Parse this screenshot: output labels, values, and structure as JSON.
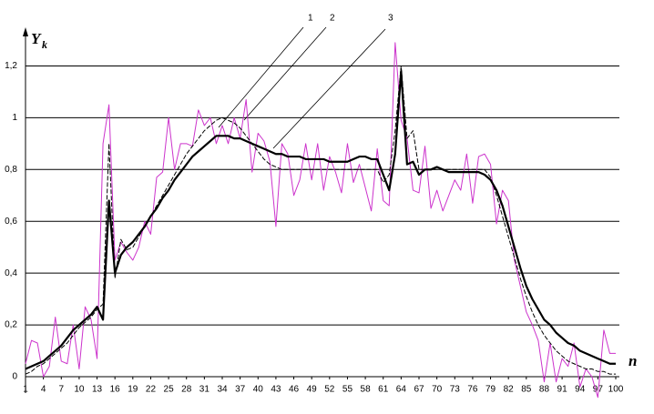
{
  "chart_data": {
    "type": "line",
    "ylabel": "Y",
    "ylabel_subscript": "k",
    "xlabel": "n",
    "x": [
      1,
      2,
      3,
      4,
      5,
      6,
      7,
      8,
      9,
      10,
      11,
      12,
      13,
      14,
      15,
      16,
      17,
      18,
      19,
      20,
      21,
      22,
      23,
      24,
      25,
      26,
      27,
      28,
      29,
      30,
      31,
      32,
      33,
      34,
      35,
      36,
      37,
      38,
      39,
      40,
      41,
      42,
      43,
      44,
      45,
      46,
      47,
      48,
      49,
      50,
      51,
      52,
      53,
      54,
      55,
      56,
      57,
      58,
      59,
      60,
      61,
      62,
      63,
      64,
      65,
      66,
      67,
      68,
      69,
      70,
      71,
      72,
      73,
      74,
      75,
      76,
      77,
      78,
      79,
      80,
      81,
      82,
      83,
      84,
      85,
      86,
      87,
      88,
      89,
      90,
      91,
      92,
      93,
      94,
      95,
      96,
      97,
      98,
      99,
      100
    ],
    "series": [
      {
        "name": "1",
        "color": "#cc33cc",
        "values": [
          0.05,
          0.14,
          0.13,
          0.0,
          0.04,
          0.23,
          0.06,
          0.05,
          0.2,
          0.03,
          0.27,
          0.22,
          0.07,
          0.9,
          1.05,
          0.45,
          0.52,
          0.48,
          0.45,
          0.5,
          0.6,
          0.55,
          0.77,
          0.79,
          1.0,
          0.8,
          0.9,
          0.9,
          0.89,
          1.03,
          0.97,
          1.0,
          0.9,
          0.97,
          0.9,
          1.0,
          0.92,
          1.07,
          0.79,
          0.94,
          0.91,
          0.83,
          0.58,
          0.9,
          0.86,
          0.7,
          0.76,
          0.9,
          0.76,
          0.9,
          0.72,
          0.85,
          0.79,
          0.71,
          0.9,
          0.75,
          0.82,
          0.73,
          0.64,
          0.88,
          0.68,
          0.66,
          1.29,
          0.99,
          0.92,
          0.72,
          0.71,
          0.89,
          0.65,
          0.72,
          0.64,
          0.7,
          0.76,
          0.72,
          0.86,
          0.67,
          0.85,
          0.86,
          0.82,
          0.59,
          0.72,
          0.68,
          0.45,
          0.35,
          0.25,
          0.2,
          0.14,
          -0.02,
          0.13,
          -0.02,
          0.07,
          0.04,
          0.13,
          -0.04,
          0.03,
          0.0,
          -0.08,
          0.18,
          0.09,
          0.09
        ]
      },
      {
        "name": "2",
        "color": "#000000",
        "values": [
          0.01,
          0.02,
          0.04,
          0.05,
          0.07,
          0.09,
          0.11,
          0.13,
          0.16,
          0.19,
          0.21,
          0.23,
          0.26,
          0.28,
          0.9,
          0.38,
          0.53,
          0.49,
          0.5,
          0.54,
          0.58,
          0.62,
          0.66,
          0.7,
          0.74,
          0.78,
          0.82,
          0.86,
          0.89,
          0.92,
          0.95,
          0.97,
          0.99,
          1.0,
          0.99,
          0.98,
          0.96,
          0.93,
          0.9,
          0.87,
          0.84,
          0.82,
          0.81,
          0.8,
          0.8,
          0.8,
          0.8,
          0.8,
          0.8,
          0.8,
          0.8,
          0.8,
          0.8,
          0.8,
          0.8,
          0.8,
          0.8,
          0.8,
          0.8,
          0.8,
          0.75,
          0.78,
          0.95,
          1.2,
          0.92,
          0.95,
          0.8,
          0.8,
          0.8,
          0.8,
          0.8,
          0.8,
          0.8,
          0.8,
          0.8,
          0.8,
          0.8,
          0.8,
          0.77,
          0.7,
          0.62,
          0.54,
          0.46,
          0.38,
          0.31,
          0.25,
          0.2,
          0.16,
          0.13,
          0.1,
          0.08,
          0.06,
          0.05,
          0.04,
          0.03,
          0.03,
          0.02,
          0.02,
          0.01,
          0.01
        ]
      },
      {
        "name": "3",
        "color": "#000000",
        "values": [
          0.03,
          0.04,
          0.05,
          0.06,
          0.08,
          0.1,
          0.12,
          0.15,
          0.18,
          0.2,
          0.22,
          0.24,
          0.27,
          0.22,
          0.68,
          0.4,
          0.47,
          0.5,
          0.52,
          0.55,
          0.58,
          0.62,
          0.65,
          0.69,
          0.72,
          0.76,
          0.79,
          0.82,
          0.85,
          0.87,
          0.89,
          0.91,
          0.93,
          0.93,
          0.93,
          0.92,
          0.92,
          0.91,
          0.9,
          0.89,
          0.88,
          0.87,
          0.86,
          0.86,
          0.85,
          0.85,
          0.85,
          0.84,
          0.84,
          0.84,
          0.84,
          0.83,
          0.83,
          0.83,
          0.83,
          0.84,
          0.85,
          0.85,
          0.84,
          0.84,
          0.78,
          0.72,
          0.86,
          1.18,
          0.82,
          0.83,
          0.78,
          0.8,
          0.8,
          0.81,
          0.8,
          0.79,
          0.79,
          0.79,
          0.79,
          0.79,
          0.79,
          0.78,
          0.76,
          0.72,
          0.66,
          0.58,
          0.5,
          0.42,
          0.35,
          0.3,
          0.26,
          0.22,
          0.2,
          0.17,
          0.15,
          0.13,
          0.12,
          0.1,
          0.09,
          0.08,
          0.07,
          0.06,
          0.05,
          0.05
        ]
      }
    ],
    "xlim": [
      1,
      100
    ],
    "xticks": [
      1,
      4,
      7,
      10,
      13,
      16,
      19,
      22,
      25,
      28,
      31,
      34,
      37,
      40,
      43,
      46,
      49,
      52,
      55,
      58,
      61,
      64,
      67,
      70,
      73,
      76,
      79,
      82,
      85,
      88,
      91,
      94,
      97,
      100
    ],
    "ylim": [
      0,
      1.3
    ],
    "yticks": [
      0,
      {
        "value": 0.2,
        "label": "0,2"
      },
      {
        "value": 0.4,
        "label": "0,4"
      },
      {
        "value": 0.6,
        "label": "0,6"
      },
      {
        "value": 0.8,
        "label": "0,8"
      },
      1,
      {
        "value": 1.2,
        "label": "1,2"
      }
    ],
    "grid": true
  }
}
